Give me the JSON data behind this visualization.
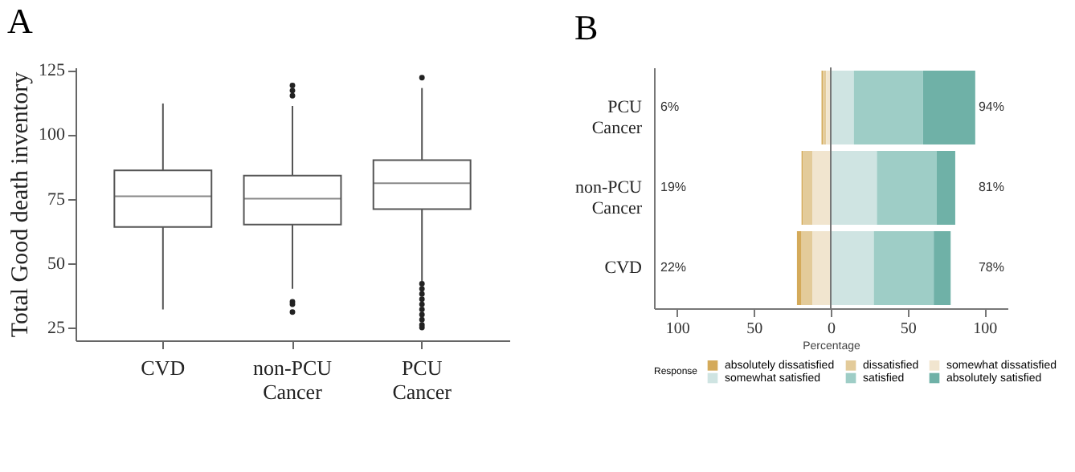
{
  "chart_data": [
    {
      "type": "box",
      "title": "A",
      "ylabel": "Total Good death inventory",
      "categories": [
        "CVD",
        "non-PCU Cancer",
        "PCU Cancer"
      ],
      "ylim": [
        20,
        126
      ],
      "yticks": [
        25,
        50,
        75,
        100,
        125
      ],
      "grid": false,
      "color": "#555555",
      "boxes": [
        {
          "low": 32,
          "q1": 64,
          "median": 76,
          "q3": 86,
          "high": 112
        },
        {
          "low": 40,
          "q1": 65,
          "median": 75,
          "q3": 84,
          "high": 111,
          "outliers": [
            119,
            117,
            115,
            35,
            34,
            31
          ]
        },
        {
          "low": 43,
          "q1": 71,
          "median": 81,
          "q3": 90,
          "high": 118,
          "outliers": [
            122,
            42,
            40,
            38,
            36,
            34,
            32,
            30,
            28,
            26,
            25
          ]
        }
      ]
    },
    {
      "type": "bar",
      "title": "B",
      "orientation": "horizontal",
      "stacked": true,
      "xlabel": "Percentage",
      "legend_title": "Response",
      "legend": "bottom",
      "grid": false,
      "categories": [
        "PCU Cancer",
        "non-PCU Cancer",
        "CVD"
      ],
      "xlim": [
        -115,
        115
      ],
      "xticks": [
        {
          "value": -100,
          "label": "100"
        },
        {
          "value": -50,
          "label": "50"
        },
        0,
        50,
        100
      ],
      "series": [
        {
          "name": "absolutely dissatisfied",
          "color": "#d4aa5a",
          "values": [
            -1,
            -1,
            -3
          ]
        },
        {
          "name": "dissatisfied",
          "color": "#e3cb9a",
          "values": [
            -2,
            -6,
            -7
          ]
        },
        {
          "name": "somewhat dissatisfied",
          "color": "#f1e5cf",
          "values": [
            -3,
            -12,
            -12
          ]
        },
        {
          "name": "somewhat satisfied",
          "color": "#cfe4e2",
          "values": [
            15,
            30,
            28
          ]
        },
        {
          "name": "satisfied",
          "color": "#9ecdc6",
          "values": [
            45,
            39,
            39
          ]
        },
        {
          "name": "absolutely satisfied",
          "color": "#6fb1a7",
          "values": [
            34,
            12,
            11
          ]
        }
      ],
      "ref_lines": [
        {
          "axis": "x",
          "value": 0,
          "color": "#777777"
        }
      ],
      "annotations": [
        "6%",
        "94%",
        "19%",
        "81%",
        "22%",
        "78%"
      ]
    }
  ]
}
